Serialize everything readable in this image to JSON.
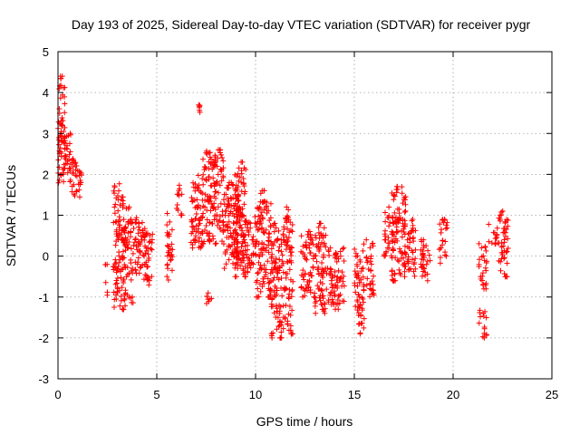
{
  "chart_data": {
    "type": "scatter",
    "title": "Day 193 of 2025, Sidereal Day-to-day VTEC variation (SDTVAR) for receiver pygr",
    "xlabel": "GPS time / hours",
    "ylabel": "SDTVAR / TECUs",
    "xlim": [
      0,
      25
    ],
    "ylim": [
      -3,
      5
    ],
    "xticks": [
      "0",
      "5",
      "10",
      "15",
      "20",
      "25"
    ],
    "yticks": [
      "-3",
      "-2",
      "-1",
      "0",
      "1",
      "2",
      "3",
      "4",
      "5"
    ],
    "grid": true,
    "marker": "+",
    "series": [
      {
        "name": "SDTVAR",
        "color": "#ff0000",
        "clusters": [
          {
            "t0": 0.0,
            "t1": 0.35,
            "y0": 1.7,
            "y1": 4.4
          },
          {
            "t0": 0.0,
            "t1": 0.5,
            "y0": 2.7,
            "y1": 3.3
          },
          {
            "t0": 0.3,
            "t1": 0.8,
            "y0": 2.0,
            "y1": 3.0
          },
          {
            "t0": 0.6,
            "t1": 1.2,
            "y0": 1.4,
            "y1": 2.4
          },
          {
            "t0": 2.4,
            "t1": 2.5,
            "y0": -1.1,
            "y1": -0.2
          },
          {
            "t0": 2.8,
            "t1": 3.3,
            "y0": -1.3,
            "y1": 2.0
          },
          {
            "t0": 3.3,
            "t1": 3.8,
            "y0": -1.4,
            "y1": 1.2
          },
          {
            "t0": 3.8,
            "t1": 4.4,
            "y0": -0.6,
            "y1": 1.0
          },
          {
            "t0": 4.4,
            "t1": 4.8,
            "y0": -0.8,
            "y1": 0.7
          },
          {
            "t0": 5.5,
            "t1": 5.8,
            "y0": -0.7,
            "y1": 1.2
          },
          {
            "t0": 6.0,
            "t1": 6.3,
            "y0": 1.0,
            "y1": 1.8
          },
          {
            "t0": 6.7,
            "t1": 7.3,
            "y0": 0.2,
            "y1": 2.0
          },
          {
            "t0": 7.1,
            "t1": 7.2,
            "y0": 3.5,
            "y1": 3.7
          },
          {
            "t0": 7.5,
            "t1": 7.9,
            "y0": -1.2,
            "y1": -0.9
          },
          {
            "t0": 7.3,
            "t1": 8.4,
            "y0": 0.3,
            "y1": 2.6
          },
          {
            "t0": 8.4,
            "t1": 9.2,
            "y0": -0.3,
            "y1": 1.8
          },
          {
            "t0": 8.9,
            "t1": 9.5,
            "y0": -0.5,
            "y1": 2.3
          },
          {
            "t0": 9.2,
            "t1": 10.0,
            "y0": -0.4,
            "y1": 1.0
          },
          {
            "t0": 10.0,
            "t1": 10.8,
            "y0": -1.0,
            "y1": 1.6
          },
          {
            "t0": 10.8,
            "t1": 11.5,
            "y0": -2.0,
            "y1": 0.8
          },
          {
            "t0": 11.5,
            "t1": 11.9,
            "y0": -1.9,
            "y1": 1.2
          },
          {
            "t0": 12.3,
            "t1": 13.0,
            "y0": -1.0,
            "y1": 0.6
          },
          {
            "t0": 13.0,
            "t1": 13.6,
            "y0": -1.4,
            "y1": 0.8
          },
          {
            "t0": 13.6,
            "t1": 14.5,
            "y0": -1.3,
            "y1": 0.2
          },
          {
            "t0": 15.0,
            "t1": 15.5,
            "y0": -1.9,
            "y1": 0.3
          },
          {
            "t0": 15.6,
            "t1": 16.0,
            "y0": -1.0,
            "y1": 0.4
          },
          {
            "t0": 16.5,
            "t1": 17.0,
            "y0": 0.0,
            "y1": 1.2
          },
          {
            "t0": 16.9,
            "t1": 17.6,
            "y0": -0.6,
            "y1": 1.7
          },
          {
            "t0": 17.5,
            "t1": 18.1,
            "y0": -0.5,
            "y1": 0.9
          },
          {
            "t0": 18.3,
            "t1": 18.9,
            "y0": -0.6,
            "y1": 0.4
          },
          {
            "t0": 19.3,
            "t1": 19.7,
            "y0": -0.2,
            "y1": 0.9
          },
          {
            "t0": 21.3,
            "t1": 21.7,
            "y0": -2.0,
            "y1": -1.3
          },
          {
            "t0": 21.3,
            "t1": 21.7,
            "y0": -0.8,
            "y1": 0.4
          },
          {
            "t0": 21.8,
            "t1": 22.3,
            "y0": 0.3,
            "y1": 0.8
          },
          {
            "t0": 22.3,
            "t1": 22.8,
            "y0": -0.5,
            "y1": 1.1
          }
        ]
      }
    ]
  }
}
